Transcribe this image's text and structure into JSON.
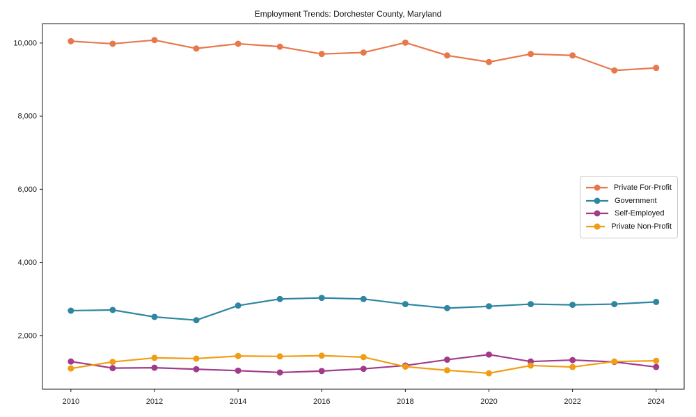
{
  "chart_data": {
    "type": "line",
    "title": "Employment Trends: Dorchester County, Maryland",
    "xlabel": "",
    "ylabel": "",
    "grid": false,
    "legend_position": "right-center",
    "x": [
      2010,
      2011,
      2012,
      2013,
      2014,
      2015,
      2016,
      2017,
      2018,
      2019,
      2020,
      2021,
      2022,
      2023,
      2024
    ],
    "series": [
      {
        "name": "Private For-Profit",
        "color": "#E8774B",
        "values": [
          10050,
          9980,
          10080,
          9850,
          9980,
          9900,
          9700,
          9740,
          10010,
          9660,
          9480,
          9700,
          9660,
          9250,
          9320
        ]
      },
      {
        "name": "Government",
        "color": "#2E86A1",
        "values": [
          2680,
          2700,
          2510,
          2420,
          2820,
          3000,
          3030,
          3000,
          2860,
          2750,
          2800,
          2860,
          2840,
          2860,
          2920
        ]
      },
      {
        "name": "Self-Employed",
        "color": "#A03A8B",
        "values": [
          1290,
          1110,
          1120,
          1080,
          1040,
          990,
          1030,
          1090,
          1180,
          1340,
          1480,
          1290,
          1330,
          1280,
          1140
        ]
      },
      {
        "name": "Private Non-Profit",
        "color": "#F09D13",
        "values": [
          1100,
          1280,
          1390,
          1370,
          1440,
          1430,
          1450,
          1410,
          1150,
          1050,
          970,
          1180,
          1140,
          1290,
          1310
        ]
      }
    ],
    "x_ticks": {
      "values": [
        2010,
        2012,
        2014,
        2016,
        2018,
        2020,
        2022,
        2024
      ],
      "labels": [
        "2010",
        "2012",
        "2014",
        "2016",
        "2018",
        "2020",
        "2022",
        "2024"
      ]
    },
    "y_ticks": {
      "values": [
        2000,
        4000,
        6000,
        8000,
        10000
      ],
      "labels": [
        "2,000",
        "4,000",
        "6,000",
        "8,000",
        "10,000"
      ]
    },
    "xlim": [
      2009.32,
      2024.67
    ],
    "ylim": [
      533,
      10530
    ],
    "axis_color": "#1a1a1a",
    "tick_label_color": "#1a1a1a"
  }
}
